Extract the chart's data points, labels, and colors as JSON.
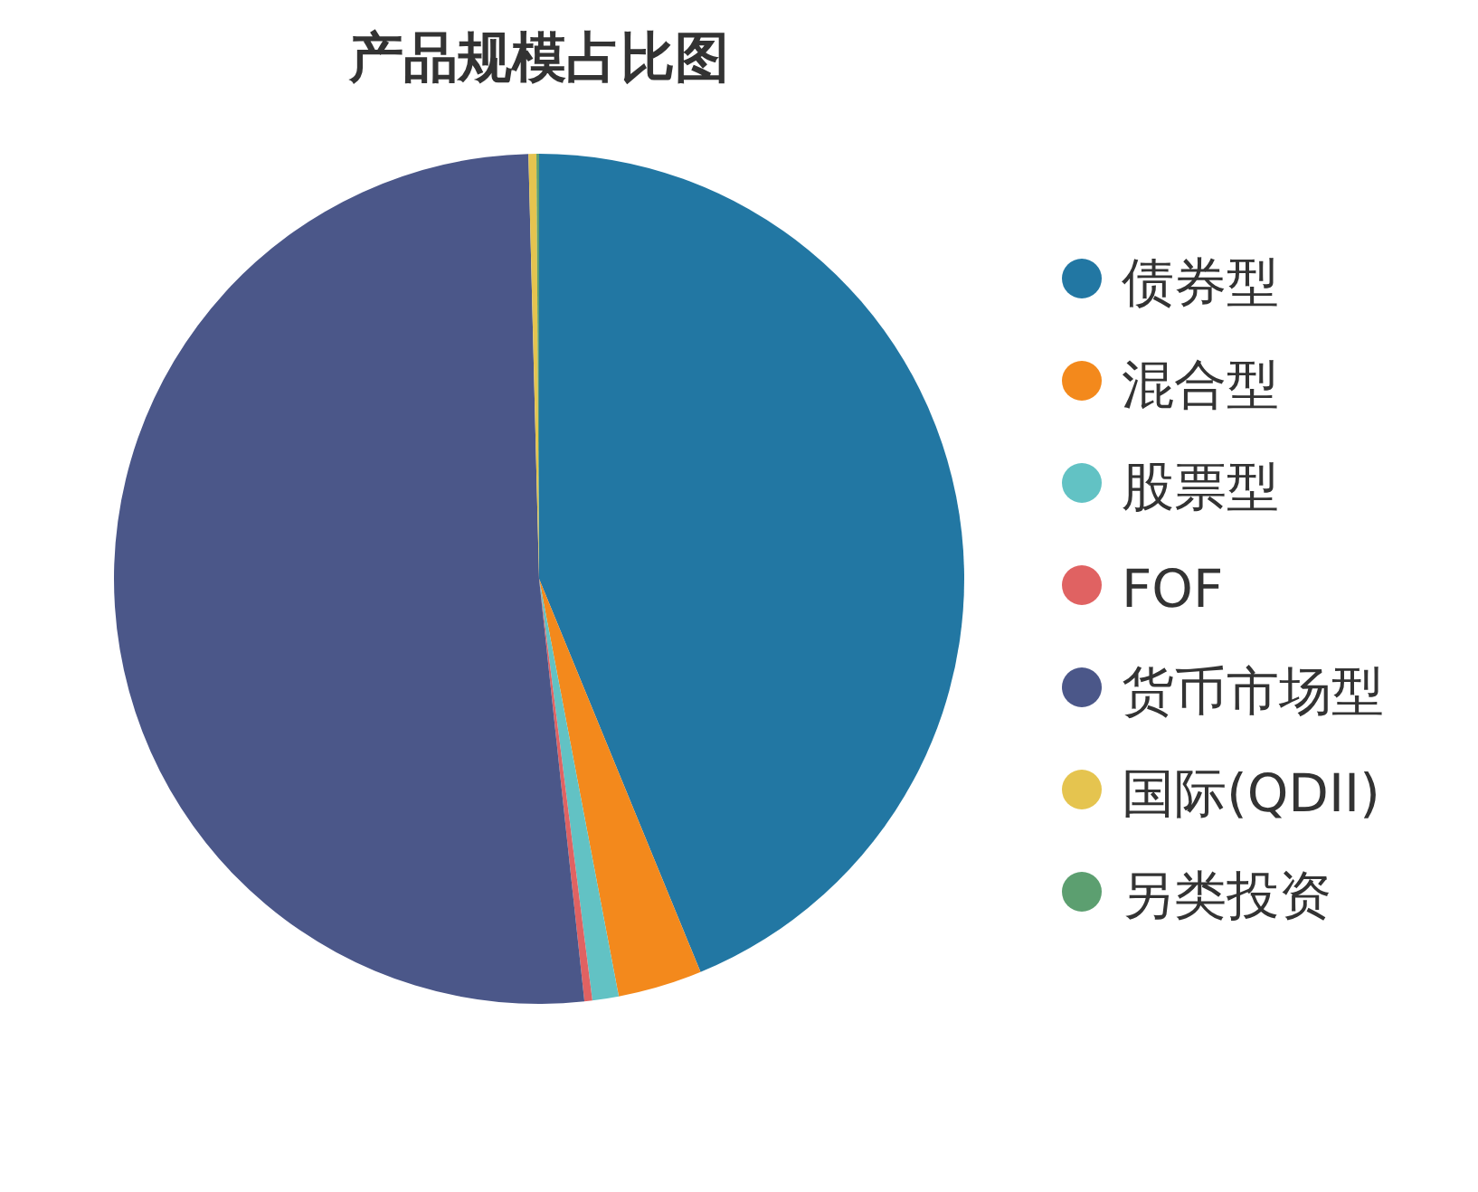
{
  "chart_data": {
    "type": "pie",
    "title": "产品规模占比图",
    "categories": [
      "债券型",
      "混合型",
      "股票型",
      "FOF",
      "货币市场型",
      "国际(QDII)",
      "另类投资"
    ],
    "values": [
      43.8,
      3.2,
      1.0,
      0.3,
      51.3,
      0.3,
      0.1
    ],
    "colors": [
      "#2277a3",
      "#f3891c",
      "#62c2c4",
      "#e06262",
      "#4b5789",
      "#e5c44f",
      "#5c9f70"
    ],
    "legend": "right"
  }
}
